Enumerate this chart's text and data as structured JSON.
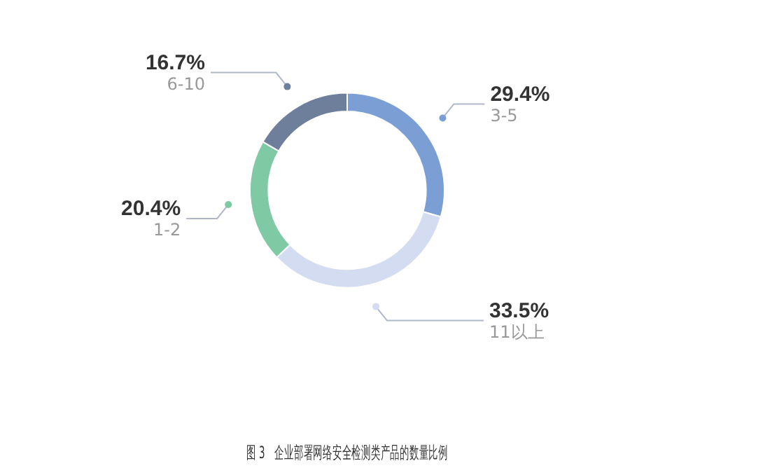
{
  "chart_data": {
    "type": "donut",
    "title": "图 3　企业部署网络安全检测类产品的数量比例",
    "categories": [
      "3-5",
      "11以上",
      "1-2",
      "6-10"
    ],
    "values": [
      29.4,
      33.5,
      20.4,
      16.7
    ],
    "value_labels": [
      "29.4%",
      "33.5%",
      "20.4%",
      "16.7%"
    ],
    "colors": [
      "#7b9fd4",
      "#d3dcf0",
      "#7fc9a5",
      "#6e7f9c"
    ],
    "legend": false
  }
}
